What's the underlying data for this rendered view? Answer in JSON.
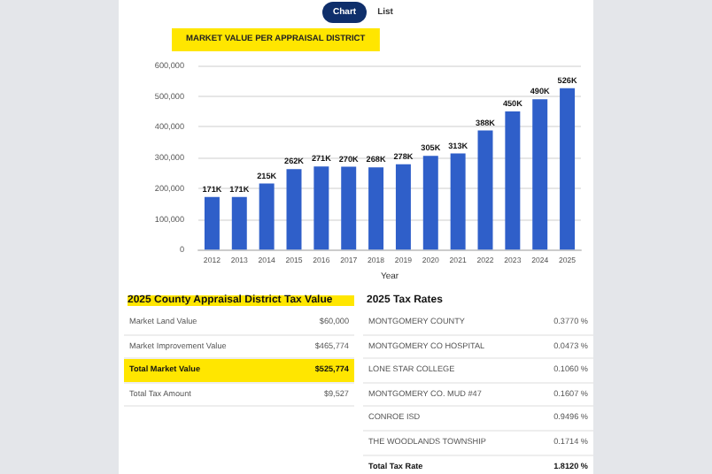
{
  "chart_data": [
    {
      "type": "bar",
      "title": "MARKET VALUE PER APPRAISAL DISTRICT",
      "xlabel": "Year",
      "annotations": [
        "Chart",
        "List"
      ],
      "categories": [
        "2012",
        "2013",
        "2014",
        "2015",
        "2016",
        "2017",
        "2018",
        "2019",
        "2020",
        "2021",
        "2022",
        "2023",
        "2024",
        "2025"
      ],
      "values": [
        171000,
        171000,
        215000,
        262000,
        271000,
        270000,
        268000,
        278000,
        305000,
        313000,
        388000,
        450000,
        490000,
        526000
      ],
      "value_labels": [
        "171K",
        "171K",
        "215K",
        "262K",
        "271K",
        "270K",
        "268K",
        "278K",
        "305K",
        "313K",
        "388K",
        "450K",
        "490K",
        "526K"
      ],
      "color": "#2f5fc9",
      "ylim": [
        0,
        600000
      ],
      "yticks": [
        0,
        {
          "value": 100000,
          "label": "100,000"
        },
        {
          "value": 200000,
          "label": "200,000"
        },
        {
          "value": 300000,
          "label": "300,000"
        },
        {
          "value": 400000,
          "label": "400,000"
        },
        {
          "value": 500000,
          "label": "500,000"
        },
        {
          "value": 600000,
          "label": "600,000"
        }
      ],
      "grid": "y"
    },
    {
      "type": "other",
      "title": "2025 County Appraisal District Tax Value",
      "annotations": [
        "Market Land Value",
        "$60,000",
        "Market Improvement Value",
        "$465,774",
        "Total Market Value",
        "$525,774",
        "Total Tax Amount",
        "$9,527"
      ]
    },
    {
      "type": "other",
      "title": "2025 Tax Rates",
      "annotations": [
        "MONTGOMERY COUNTY",
        "0.3770 %",
        "MONTGOMERY CO HOSPITAL",
        "0.0473 %",
        "LONE STAR COLLEGE",
        "0.1060 %",
        "MONTGOMERY CO. MUD #47",
        "0.1607 %",
        "CONROE ISD",
        "0.9496 %",
        "THE WOODLANDS TOWNSHIP",
        "0.1714 %",
        "Total Tax Rate",
        "1.8120 %"
      ]
    }
  ]
}
